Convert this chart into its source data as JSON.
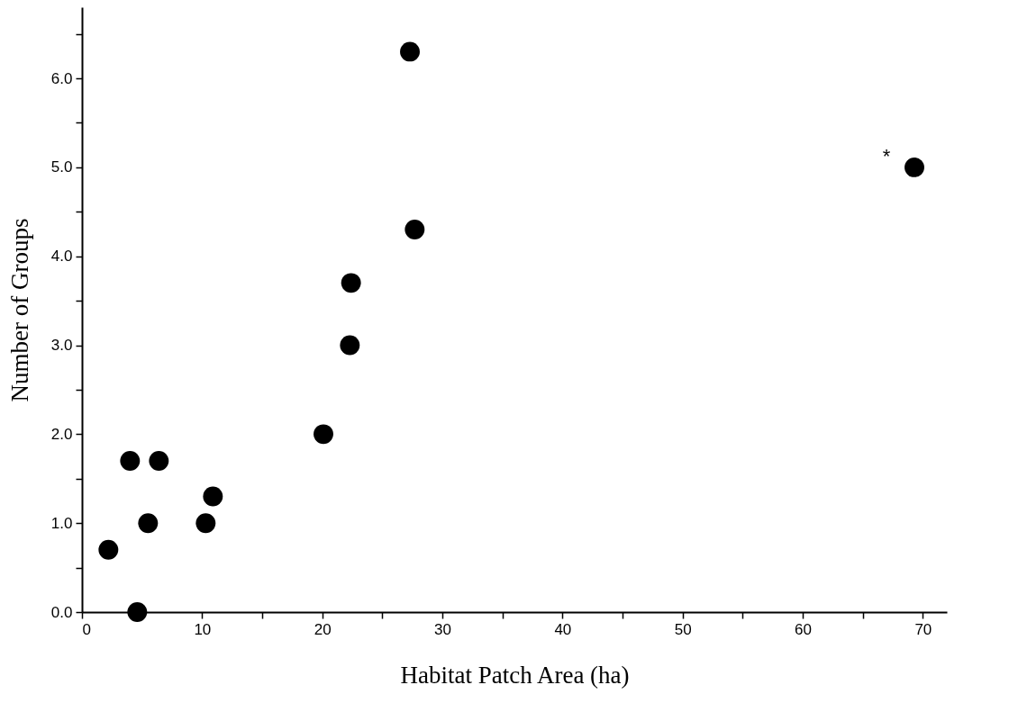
{
  "chart_data": {
    "type": "scatter",
    "xlabel": "Habitat Patch Area (ha)",
    "ylabel": "Number of Groups",
    "x": [
      2.2,
      4.0,
      4.6,
      5.5,
      6.4,
      10.3,
      10.9,
      20.1,
      22.3,
      22.4,
      27.3,
      27.7,
      69.3
    ],
    "series": [
      {
        "color": "#000000",
        "values": [
          0.7,
          1.7,
          0,
          1.0,
          1.7,
          1.0,
          1.3,
          2.0,
          3.0,
          3.7,
          6.3,
          4.3,
          5.0
        ]
      }
    ],
    "marker": "circle",
    "grid": false,
    "xlim": [
      0,
      72
    ],
    "xticks": [
      0,
      {
        "value": 5,
        "label": null
      },
      10,
      {
        "value": 15,
        "label": null
      },
      20,
      {
        "value": 25,
        "label": null
      },
      30,
      {
        "value": 35,
        "label": null
      },
      40,
      {
        "value": 45,
        "label": null
      },
      50,
      {
        "value": 55,
        "label": null
      },
      60,
      {
        "value": 65,
        "label": null
      },
      70
    ],
    "ylim": [
      0,
      6.8
    ],
    "yticks": [
      {
        "value": 0,
        "label": "0.0"
      },
      {
        "value": 0.5,
        "label": null
      },
      {
        "value": 1,
        "label": "1.0"
      },
      {
        "value": 1.5,
        "label": null
      },
      {
        "value": 2,
        "label": "2.0"
      },
      {
        "value": 2.5,
        "label": null
      },
      {
        "value": 3,
        "label": "3.0"
      },
      {
        "value": 3.5,
        "label": null
      },
      {
        "value": 4,
        "label": "4.0"
      },
      {
        "value": 4.5,
        "label": null
      },
      {
        "value": 5,
        "label": "5.0"
      },
      {
        "value": 5.5,
        "label": null
      },
      {
        "value": 6,
        "label": "6.0"
      },
      {
        "value": 6.5,
        "label": null
      }
    ],
    "annotations": [
      "*"
    ]
  }
}
